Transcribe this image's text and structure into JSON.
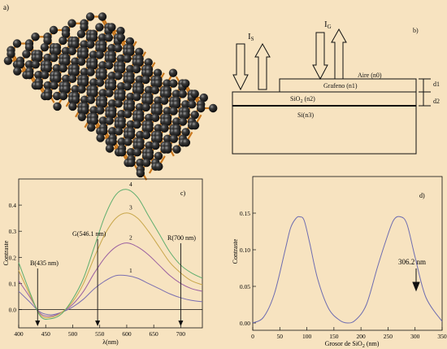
{
  "panels": {
    "a": {
      "label": "a)"
    },
    "b": {
      "label": "b)",
      "beam_s": "I",
      "beam_s_sub": "S",
      "beam_g": "I",
      "beam_g_sub": "G",
      "layer_air": "Aire (n0)",
      "layer_graphene": "Grafeno (n1)",
      "layer_sio2_main": "SiO",
      "layer_sio2_sub": "2",
      "layer_sio2_tail": " (n2)",
      "layer_si": "Si(n3)",
      "thickness_1": "d1",
      "thickness_2": "d2"
    },
    "c": {
      "label": "c)",
      "annotations": {
        "b": "B(435 nm)",
        "g": "G(546.1 nm)",
        "r": "R(700 nm)"
      }
    },
    "d": {
      "label": "d)",
      "annotation": "306.2 nm",
      "xlabel_main": "Grosor de SiO",
      "xlabel_sub": "2",
      "xlabel_tail": " (nm)"
    }
  },
  "colors": {
    "background": "#f7e3c0",
    "curve_1": "#7b6fb0",
    "curve_2": "#9a5fa0",
    "curve_3": "#c8a64a",
    "curve_4": "#5fae6e",
    "curve_d": "#6d6cb0",
    "lattice_bond": "#c8761c",
    "atom": "#1c1c1c"
  },
  "chart_data": [
    {
      "type": "line",
      "panel": "c",
      "xlabel": "λ(nm)",
      "ylabel": "Contraste",
      "xlim": [
        400,
        740
      ],
      "ylim": [
        -0.07,
        0.5
      ],
      "xticks": [
        400,
        450,
        500,
        550,
        600,
        650,
        700
      ],
      "yticks": [
        0.0,
        0.1,
        0.2,
        0.3,
        0.4
      ],
      "ytick_labels": [
        "0.0",
        "0.1",
        "0.2",
        "0.3",
        "0.4"
      ],
      "x": [
        400,
        420,
        440,
        460,
        480,
        500,
        520,
        540,
        560,
        580,
        600,
        620,
        640,
        660,
        680,
        700,
        720,
        740
      ],
      "series": [
        {
          "name": "1",
          "values": [
            0.07,
            0.03,
            -0.01,
            -0.02,
            -0.01,
            0.01,
            0.04,
            0.08,
            0.11,
            0.13,
            0.13,
            0.12,
            0.1,
            0.08,
            0.06,
            0.045,
            0.035,
            0.03
          ]
        },
        {
          "name": "2",
          "values": [
            0.11,
            0.05,
            -0.015,
            -0.025,
            -0.01,
            0.02,
            0.07,
            0.14,
            0.2,
            0.24,
            0.255,
            0.24,
            0.21,
            0.17,
            0.13,
            0.1,
            0.08,
            0.07
          ]
        },
        {
          "name": "3",
          "values": [
            0.15,
            0.06,
            -0.02,
            -0.03,
            -0.01,
            0.03,
            0.1,
            0.2,
            0.29,
            0.35,
            0.37,
            0.35,
            0.3,
            0.24,
            0.18,
            0.14,
            0.11,
            0.095
          ]
        },
        {
          "name": "4",
          "values": [
            0.18,
            0.07,
            -0.025,
            -0.035,
            -0.015,
            0.04,
            0.12,
            0.24,
            0.36,
            0.44,
            0.46,
            0.43,
            0.36,
            0.29,
            0.22,
            0.17,
            0.14,
            0.12
          ]
        }
      ]
    },
    {
      "type": "line",
      "panel": "d",
      "xlabel": "Grosor de SiO2 (nm)",
      "ylabel": "Contraste",
      "xlim": [
        0,
        350
      ],
      "ylim": [
        -0.01,
        0.2
      ],
      "xticks": [
        0,
        50,
        100,
        150,
        200,
        250,
        300,
        350
      ],
      "yticks": [
        0.0,
        0.05,
        0.1,
        0.15
      ],
      "ytick_labels": [
        "0.00",
        "0.05",
        "0.10",
        "0.15"
      ],
      "x": [
        0,
        20,
        40,
        60,
        70,
        80,
        87,
        95,
        105,
        120,
        140,
        160,
        175,
        190,
        210,
        230,
        245,
        260,
        273,
        285,
        300,
        320,
        350
      ],
      "series": [
        {
          "values": [
            0.0,
            0.008,
            0.04,
            0.1,
            0.13,
            0.143,
            0.145,
            0.14,
            0.11,
            0.06,
            0.02,
            0.004,
            0.0,
            0.004,
            0.025,
            0.075,
            0.11,
            0.14,
            0.145,
            0.135,
            0.09,
            0.035,
            0.002
          ]
        }
      ]
    }
  ]
}
